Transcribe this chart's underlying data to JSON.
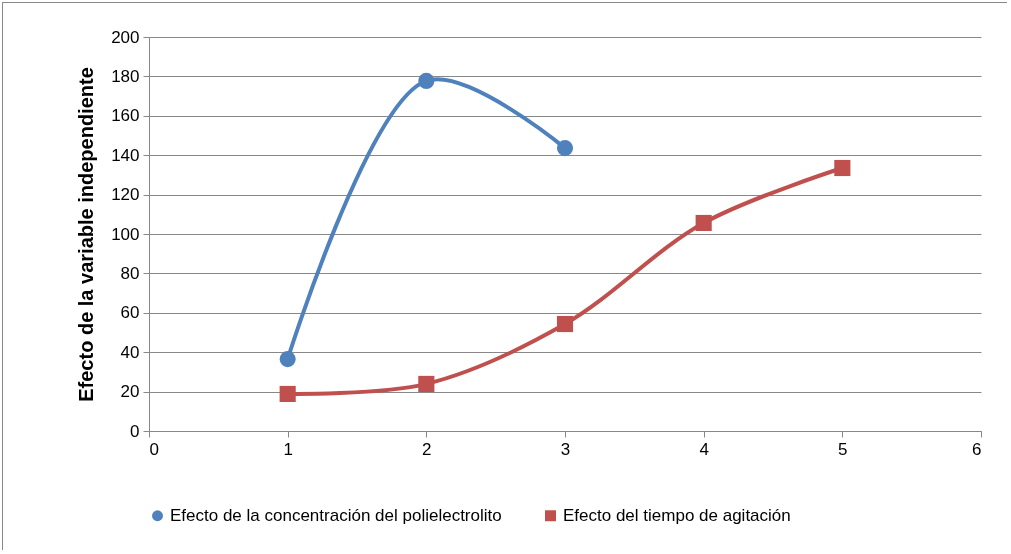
{
  "chart_data": {
    "type": "line",
    "ylabel": "Efecto de la  variable independiente",
    "xlim": [
      0,
      6
    ],
    "xticks": [
      0,
      1,
      2,
      3,
      4,
      5,
      6
    ],
    "ylim": [
      0,
      200
    ],
    "yticks": [
      0,
      20,
      40,
      60,
      80,
      100,
      120,
      140,
      160,
      180,
      200
    ],
    "grid": "y",
    "legend": "bottom",
    "series": [
      {
        "name": "Efecto de la concentración del polielectrolito",
        "color": "#4f81bd",
        "marker": "circle",
        "x": [
          1,
          2,
          3
        ],
        "values": [
          36.5,
          177.7,
          143.6
        ]
      },
      {
        "name": "Efecto del tiempo de agitación",
        "color": "#c0504d",
        "marker": "square",
        "x": [
          1,
          2,
          3,
          4,
          5
        ],
        "values": [
          18.8,
          23.9,
          54.3,
          105.6,
          133.5
        ]
      }
    ]
  }
}
